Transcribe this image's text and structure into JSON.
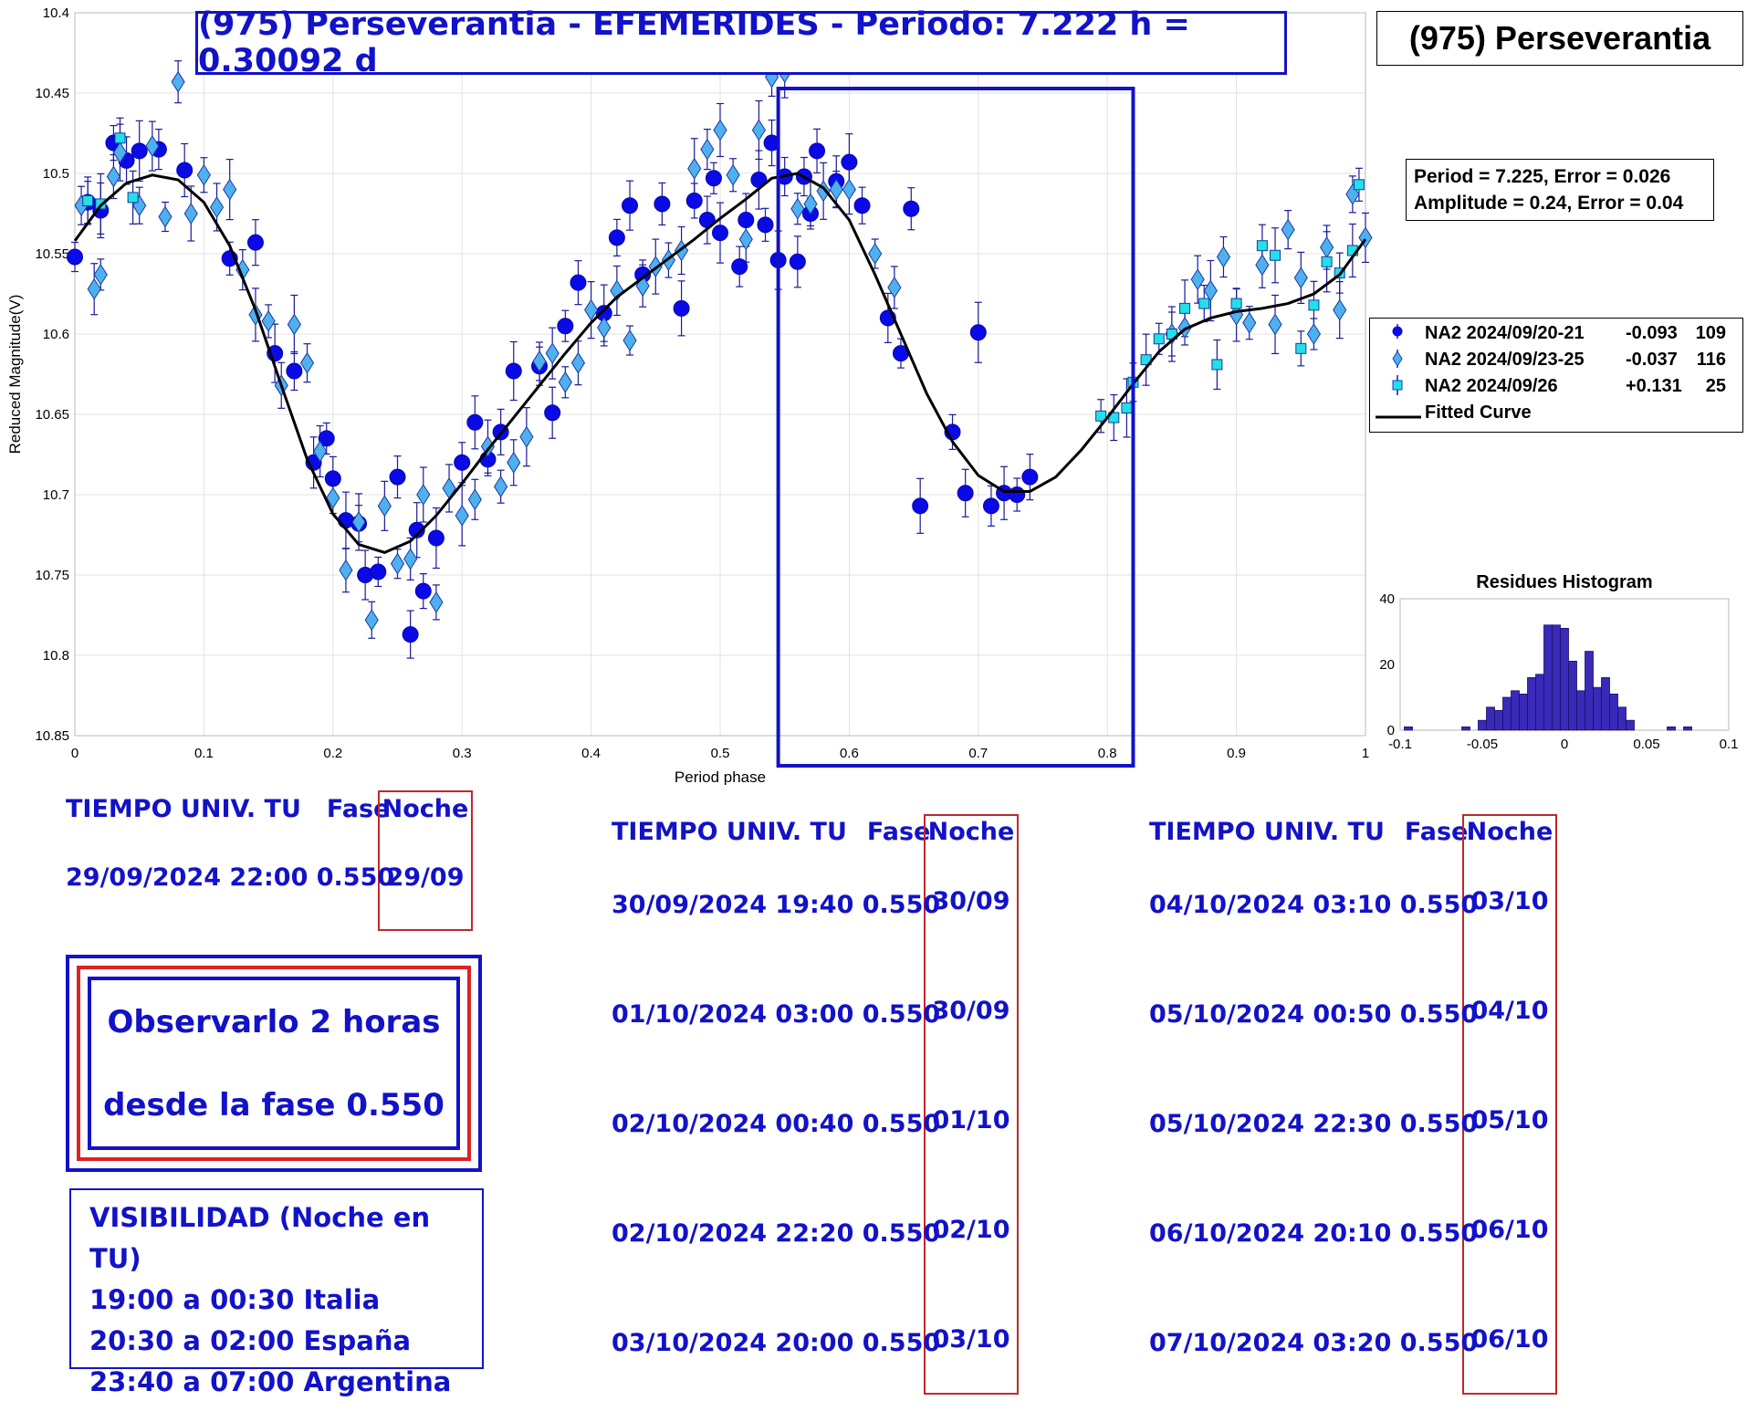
{
  "header": {
    "title": "(975) Perseverantia - EFEMERIDES - Periodo: 7.222 h = 0.30092 d",
    "object_name": "(975) Perseverantia"
  },
  "fit_info": {
    "line1": "Period =  7.225, Error = 0.026",
    "line2": "Amplitude = 0.24, Error = 0.04"
  },
  "legend": [
    {
      "label": "NA2 2024/09/20-21",
      "offset": "-0.093",
      "count": "109",
      "marker": "circle",
      "color": "#0a0ae6"
    },
    {
      "label": "NA2 2024/09/23-25",
      "offset": "-0.037",
      "count": "116",
      "marker": "diamond",
      "color": "#4fb0f0"
    },
    {
      "label": "NA2 2024/09/26",
      "offset": "+0.131",
      "count": "25",
      "marker": "square",
      "color": "#22e0e8"
    },
    {
      "label": "Fitted Curve",
      "offset": "",
      "count": "",
      "marker": "line",
      "color": "#000000"
    }
  ],
  "ephemeris": {
    "header": {
      "time": "TIEMPO UNIV. TU",
      "phase": "Fase",
      "night": "Noche"
    },
    "col1": [
      {
        "datetime": "29/09/2024  22:00",
        "phase": "0.550",
        "night": "29/09"
      }
    ],
    "col2": [
      {
        "datetime": "30/09/2024  19:40",
        "phase": "0.550",
        "night": "30/09"
      },
      {
        "datetime": "01/10/2024  03:00",
        "phase": "0.550",
        "night": "30/09"
      },
      {
        "datetime": "02/10/2024  00:40",
        "phase": "0.550",
        "night": "01/10"
      },
      {
        "datetime": "02/10/2024  22:20",
        "phase": "0.550",
        "night": "02/10"
      },
      {
        "datetime": "03/10/2024  20:00",
        "phase": "0.550",
        "night": "03/10"
      }
    ],
    "col3": [
      {
        "datetime": "04/10/2024  03:10",
        "phase": "0.550",
        "night": "03/10"
      },
      {
        "datetime": "05/10/2024  00:50",
        "phase": "0.550",
        "night": "04/10"
      },
      {
        "datetime": "05/10/2024  22:30",
        "phase": "0.550",
        "night": "05/10"
      },
      {
        "datetime": "06/10/2024  20:10",
        "phase": "0.550",
        "night": "06/10"
      },
      {
        "datetime": "07/10/2024  03:20",
        "phase": "0.550",
        "night": "06/10"
      }
    ]
  },
  "observe_box": {
    "line1": "Observarlo 2 horas",
    "line2": "desde la fase 0.550"
  },
  "visibility": {
    "title": "VISIBILIDAD (Noche en TU)",
    "lines": [
      "19:00 a 00:30 Italia",
      "20:30 a 02:00 España",
      "23:40 a 07:00 Argentina"
    ]
  },
  "chart_data": [
    {
      "type": "scatter",
      "title": "",
      "xlabel": "Period phase",
      "ylabel": "Reduced Magnitude(V)",
      "xlim": [
        0,
        1
      ],
      "ylim": [
        10.4,
        10.85
      ],
      "y_reversed": true,
      "grid": true,
      "legend_placement": "right",
      "xticks": [
        "0",
        "0.1",
        "0.2",
        "0.3",
        "0.4",
        "0.5",
        "0.6",
        "0.7",
        "0.8",
        "0.9",
        "1"
      ],
      "yticks": [
        "10.4",
        "10.45",
        "10.5",
        "10.55",
        "10.6",
        "10.65",
        "10.7",
        "10.75",
        "10.8",
        "10.85"
      ],
      "highlight_phase_range": [
        0.545,
        0.82
      ],
      "fitted_curve": [
        [
          0.0,
          10.542
        ],
        [
          0.02,
          10.52
        ],
        [
          0.04,
          10.506
        ],
        [
          0.06,
          10.501
        ],
        [
          0.08,
          10.504
        ],
        [
          0.1,
          10.518
        ],
        [
          0.12,
          10.545
        ],
        [
          0.14,
          10.585
        ],
        [
          0.16,
          10.632
        ],
        [
          0.18,
          10.678
        ],
        [
          0.2,
          10.712
        ],
        [
          0.22,
          10.731
        ],
        [
          0.24,
          10.736
        ],
        [
          0.26,
          10.729
        ],
        [
          0.28,
          10.713
        ],
        [
          0.3,
          10.693
        ],
        [
          0.32,
          10.672
        ],
        [
          0.34,
          10.652
        ],
        [
          0.36,
          10.632
        ],
        [
          0.38,
          10.612
        ],
        [
          0.4,
          10.593
        ],
        [
          0.42,
          10.577
        ],
        [
          0.44,
          10.565
        ],
        [
          0.46,
          10.553
        ],
        [
          0.48,
          10.541
        ],
        [
          0.5,
          10.528
        ],
        [
          0.52,
          10.516
        ],
        [
          0.54,
          10.503
        ],
        [
          0.56,
          10.5
        ],
        [
          0.58,
          10.509
        ],
        [
          0.6,
          10.529
        ],
        [
          0.62,
          10.563
        ],
        [
          0.64,
          10.6
        ],
        [
          0.66,
          10.637
        ],
        [
          0.68,
          10.667
        ],
        [
          0.7,
          10.688
        ],
        [
          0.72,
          10.698
        ],
        [
          0.74,
          10.698
        ],
        [
          0.76,
          10.689
        ],
        [
          0.78,
          10.672
        ],
        [
          0.8,
          10.652
        ],
        [
          0.82,
          10.631
        ],
        [
          0.84,
          10.611
        ],
        [
          0.86,
          10.597
        ],
        [
          0.88,
          10.59
        ],
        [
          0.9,
          10.586
        ],
        [
          0.92,
          10.584
        ],
        [
          0.94,
          10.581
        ],
        [
          0.96,
          10.575
        ],
        [
          0.98,
          10.563
        ],
        [
          1.0,
          10.541
        ]
      ],
      "series": [
        {
          "name": "NA2 2024/09/20-21",
          "marker": "circle",
          "color": "#0a0ae6",
          "points": [
            [
              0.0,
              10.552
            ],
            [
              0.01,
              10.518
            ],
            [
              0.02,
              10.523
            ],
            [
              0.03,
              10.481
            ],
            [
              0.04,
              10.492
            ],
            [
              0.05,
              10.486
            ],
            [
              0.065,
              10.485
            ],
            [
              0.085,
              10.498
            ],
            [
              0.12,
              10.553
            ],
            [
              0.14,
              10.543
            ],
            [
              0.155,
              10.612
            ],
            [
              0.17,
              10.623
            ],
            [
              0.185,
              10.68
            ],
            [
              0.195,
              10.665
            ],
            [
              0.2,
              10.69
            ],
            [
              0.21,
              10.716
            ],
            [
              0.22,
              10.718
            ],
            [
              0.225,
              10.75
            ],
            [
              0.235,
              10.748
            ],
            [
              0.25,
              10.689
            ],
            [
              0.265,
              10.722
            ],
            [
              0.27,
              10.76
            ],
            [
              0.26,
              10.787
            ],
            [
              0.28,
              10.727
            ],
            [
              0.3,
              10.68
            ],
            [
              0.31,
              10.655
            ],
            [
              0.32,
              10.678
            ],
            [
              0.33,
              10.661
            ],
            [
              0.34,
              10.623
            ],
            [
              0.36,
              10.62
            ],
            [
              0.37,
              10.649
            ],
            [
              0.38,
              10.595
            ],
            [
              0.39,
              10.568
            ],
            [
              0.41,
              10.587
            ],
            [
              0.42,
              10.54
            ],
            [
              0.43,
              10.52
            ],
            [
              0.44,
              10.563
            ],
            [
              0.455,
              10.519
            ],
            [
              0.47,
              10.584
            ],
            [
              0.48,
              10.517
            ],
            [
              0.49,
              10.529
            ],
            [
              0.5,
              10.537
            ],
            [
              0.515,
              10.558
            ],
            [
              0.52,
              10.529
            ],
            [
              0.535,
              10.532
            ],
            [
              0.54,
              10.481
            ],
            [
              0.545,
              10.554
            ],
            [
              0.55,
              10.502
            ],
            [
              0.56,
              10.555
            ],
            [
              0.57,
              10.525
            ],
            [
              0.575,
              10.486
            ],
            [
              0.6,
              10.493
            ],
            [
              0.61,
              10.52
            ],
            [
              0.63,
              10.59
            ],
            [
              0.64,
              10.612
            ],
            [
              0.648,
              10.522
            ],
            [
              0.655,
              10.707
            ],
            [
              0.68,
              10.661
            ],
            [
              0.69,
              10.699
            ],
            [
              0.7,
              10.599
            ],
            [
              0.71,
              10.707
            ],
            [
              0.72,
              10.699
            ],
            [
              0.73,
              10.7
            ],
            [
              0.74,
              10.689
            ],
            [
              0.53,
              10.504
            ],
            [
              0.565,
              10.502
            ],
            [
              0.59,
              10.505
            ],
            [
              0.495,
              10.503
            ]
          ]
        },
        {
          "name": "NA2 2024/09/23-25",
          "marker": "diamond",
          "color": "#4fb0f0",
          "points": [
            [
              0.005,
              10.52
            ],
            [
              0.015,
              10.572
            ],
            [
              0.02,
              10.563
            ],
            [
              0.03,
              10.502
            ],
            [
              0.035,
              10.487
            ],
            [
              0.05,
              10.52
            ],
            [
              0.06,
              10.483
            ],
            [
              0.07,
              10.527
            ],
            [
              0.08,
              10.443
            ],
            [
              0.09,
              10.525
            ],
            [
              0.1,
              10.501
            ],
            [
              0.11,
              10.521
            ],
            [
              0.12,
              10.51
            ],
            [
              0.13,
              10.56
            ],
            [
              0.14,
              10.588
            ],
            [
              0.15,
              10.592
            ],
            [
              0.16,
              10.632
            ],
            [
              0.17,
              10.594
            ],
            [
              0.18,
              10.618
            ],
            [
              0.19,
              10.673
            ],
            [
              0.2,
              10.702
            ],
            [
              0.21,
              10.747
            ],
            [
              0.22,
              10.717
            ],
            [
              0.23,
              10.778
            ],
            [
              0.24,
              10.707
            ],
            [
              0.25,
              10.743
            ],
            [
              0.26,
              10.74
            ],
            [
              0.27,
              10.7
            ],
            [
              0.28,
              10.767
            ],
            [
              0.29,
              10.696
            ],
            [
              0.3,
              10.713
            ],
            [
              0.31,
              10.703
            ],
            [
              0.32,
              10.67
            ],
            [
              0.33,
              10.695
            ],
            [
              0.34,
              10.68
            ],
            [
              0.35,
              10.664
            ],
            [
              0.36,
              10.617
            ],
            [
              0.37,
              10.612
            ],
            [
              0.38,
              10.63
            ],
            [
              0.39,
              10.618
            ],
            [
              0.4,
              10.585
            ],
            [
              0.41,
              10.596
            ],
            [
              0.42,
              10.573
            ],
            [
              0.43,
              10.604
            ],
            [
              0.44,
              10.57
            ],
            [
              0.45,
              10.558
            ],
            [
              0.46,
              10.554
            ],
            [
              0.47,
              10.548
            ],
            [
              0.48,
              10.497
            ],
            [
              0.49,
              10.485
            ],
            [
              0.5,
              10.473
            ],
            [
              0.51,
              10.501
            ],
            [
              0.52,
              10.541
            ],
            [
              0.53,
              10.473
            ],
            [
              0.54,
              10.44
            ],
            [
              0.55,
              10.437
            ],
            [
              0.56,
              10.522
            ],
            [
              0.57,
              10.519
            ],
            [
              0.58,
              10.511
            ],
            [
              0.59,
              10.51
            ],
            [
              0.6,
              10.51
            ],
            [
              0.62,
              10.55
            ],
            [
              0.635,
              10.571
            ],
            [
              0.85,
              10.6
            ],
            [
              0.86,
              10.596
            ],
            [
              0.87,
              10.566
            ],
            [
              0.88,
              10.573
            ],
            [
              0.89,
              10.552
            ],
            [
              0.9,
              10.588
            ],
            [
              0.91,
              10.593
            ],
            [
              0.92,
              10.557
            ],
            [
              0.93,
              10.594
            ],
            [
              0.94,
              10.535
            ],
            [
              0.95,
              10.565
            ],
            [
              0.96,
              10.6
            ],
            [
              0.97,
              10.546
            ],
            [
              0.98,
              10.585
            ],
            [
              0.99,
              10.513
            ],
            [
              1.0,
              10.54
            ]
          ]
        },
        {
          "name": "NA2 2024/09/26",
          "marker": "square",
          "color": "#22e0e8",
          "points": [
            [
              0.01,
              10.517
            ],
            [
              0.02,
              10.519
            ],
            [
              0.035,
              10.478
            ],
            [
              0.045,
              10.515
            ],
            [
              0.795,
              10.651
            ],
            [
              0.805,
              10.652
            ],
            [
              0.815,
              10.646
            ],
            [
              0.82,
              10.63
            ],
            [
              0.83,
              10.616
            ],
            [
              0.84,
              10.603
            ],
            [
              0.85,
              10.6
            ],
            [
              0.86,
              10.584
            ],
            [
              0.875,
              10.581
            ],
            [
              0.885,
              10.619
            ],
            [
              0.9,
              10.581
            ],
            [
              0.92,
              10.545
            ],
            [
              0.93,
              10.551
            ],
            [
              0.95,
              10.609
            ],
            [
              0.96,
              10.582
            ],
            [
              0.97,
              10.555
            ],
            [
              0.98,
              10.562
            ],
            [
              0.99,
              10.548
            ],
            [
              0.995,
              10.507
            ]
          ]
        }
      ]
    },
    {
      "type": "bar",
      "title": "Residues Histogram",
      "xlim": [
        -0.1,
        0.1
      ],
      "ylim": [
        0,
        40
      ],
      "xticks": [
        "-0.1",
        "-0.05",
        "0",
        "0.05",
        "0.1"
      ],
      "yticks": [
        "0",
        "20",
        "40"
      ],
      "bins": [
        -0.095,
        -0.085,
        -0.075,
        -0.065,
        -0.06,
        -0.05,
        -0.045,
        -0.04,
        -0.035,
        -0.03,
        -0.025,
        -0.02,
        -0.015,
        -0.01,
        -0.005,
        0,
        0.005,
        0.01,
        0.015,
        0.02,
        0.025,
        0.03,
        0.035,
        0.04,
        0.045,
        0.055,
        0.065,
        0.075,
        0.08
      ],
      "values": [
        1,
        0,
        0,
        0,
        1,
        3,
        7,
        6,
        10,
        12,
        11,
        16,
        17,
        32,
        32,
        31,
        21,
        12,
        24,
        13,
        16,
        11,
        7,
        3,
        0,
        0,
        1,
        1,
        0
      ]
    }
  ]
}
